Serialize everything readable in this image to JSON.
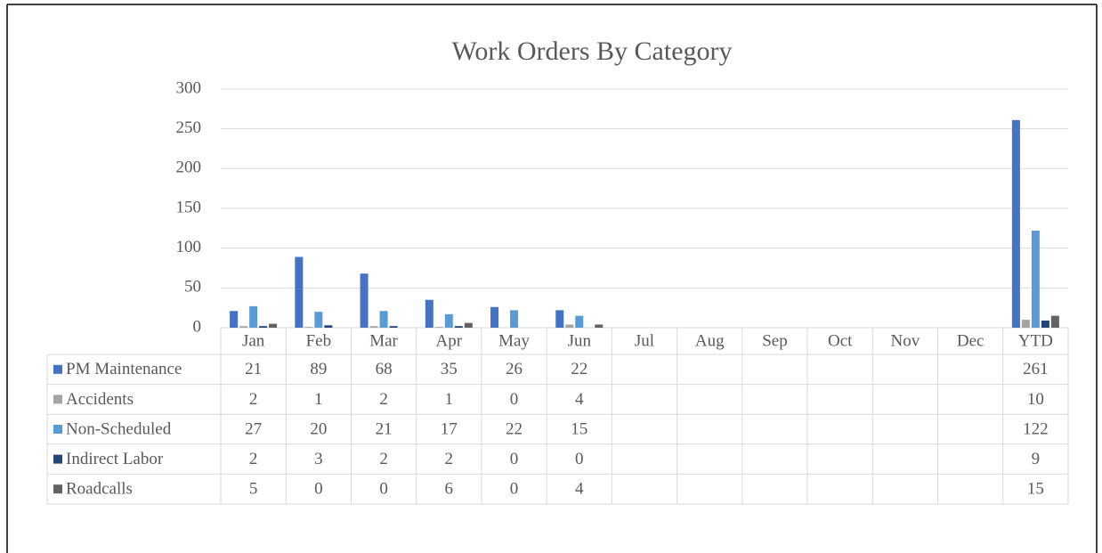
{
  "chart_data": {
    "type": "bar",
    "title": "Work Orders By Category",
    "categories": [
      "Jan",
      "Feb",
      "Mar",
      "Apr",
      "May",
      "Jun",
      "Jul",
      "Aug",
      "Sep",
      "Oct",
      "Nov",
      "Dec",
      "YTD"
    ],
    "series": [
      {
        "name": "PM Maintenance",
        "color": "#4472c4",
        "values": [
          21,
          89,
          68,
          35,
          26,
          22,
          null,
          null,
          null,
          null,
          null,
          null,
          261
        ]
      },
      {
        "name": "Accidents",
        "color": "#a5a5a5",
        "values": [
          2,
          1,
          2,
          1,
          0,
          4,
          null,
          null,
          null,
          null,
          null,
          null,
          10
        ]
      },
      {
        "name": "Non-Scheduled",
        "color": "#5b9bd5",
        "values": [
          27,
          20,
          21,
          17,
          22,
          15,
          null,
          null,
          null,
          null,
          null,
          null,
          122
        ]
      },
      {
        "name": "Indirect Labor",
        "color": "#264478",
        "values": [
          2,
          3,
          2,
          2,
          0,
          0,
          null,
          null,
          null,
          null,
          null,
          null,
          9
        ]
      },
      {
        "name": "Roadcalls",
        "color": "#636363",
        "values": [
          5,
          0,
          0,
          6,
          0,
          4,
          null,
          null,
          null,
          null,
          null,
          null,
          15
        ]
      }
    ],
    "ylim": [
      0,
      300
    ],
    "yticks": [
      0,
      50,
      100,
      150,
      200,
      250,
      300
    ],
    "grid": true
  }
}
